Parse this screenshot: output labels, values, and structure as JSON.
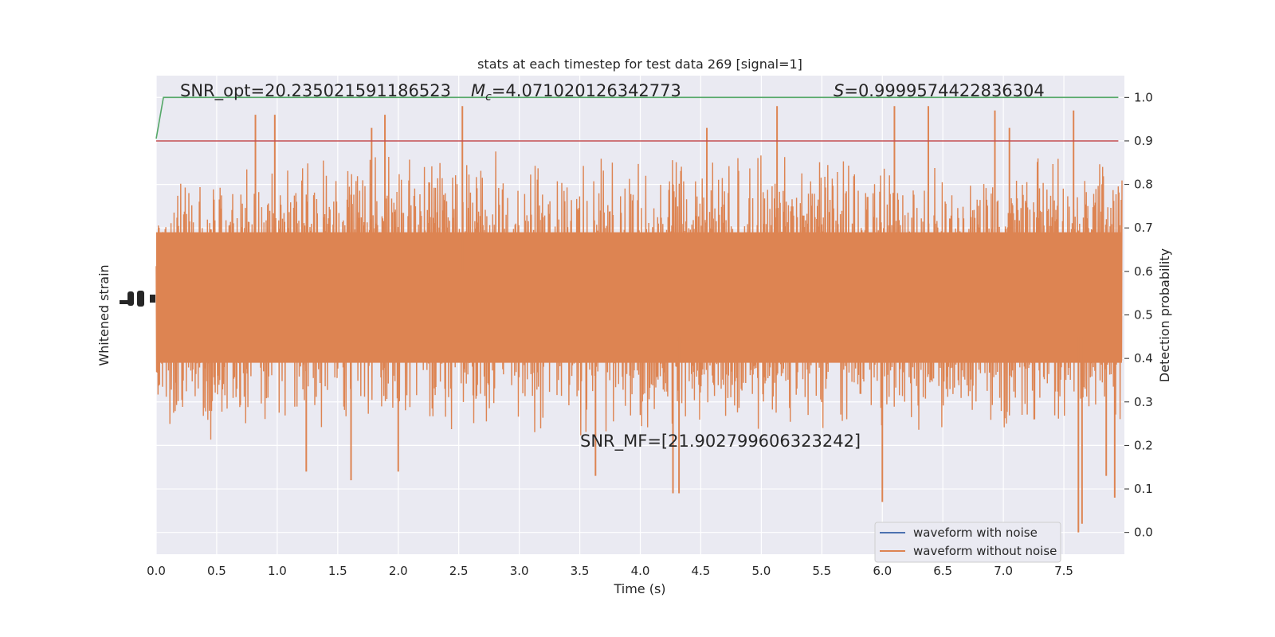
{
  "chart_data": {
    "type": "line",
    "title": "stats at each timestep for test data 269 [signal=1]",
    "xlabel": "Time (s)",
    "ylabel_left": "Whitened strain",
    "ylabel_right": "Detection probability",
    "xlim": [
      0.0,
      8.0
    ],
    "ylim_right": [
      -0.05,
      1.05
    ],
    "x_ticks": [
      "0.0",
      "0.5",
      "1.0",
      "1.5",
      "2.0",
      "2.5",
      "3.0",
      "3.5",
      "4.0",
      "4.5",
      "5.0",
      "5.5",
      "6.0",
      "6.5",
      "7.0",
      "7.5"
    ],
    "x_tick_values": [
      0.0,
      0.5,
      1.0,
      1.5,
      2.0,
      2.5,
      3.0,
      3.5,
      4.0,
      4.5,
      5.0,
      5.5,
      6.0,
      6.5,
      7.0,
      7.5
    ],
    "y_right_ticks": [
      "0.0",
      "0.1",
      "0.2",
      "0.3",
      "0.4",
      "0.5",
      "0.6",
      "0.7",
      "0.8",
      "0.9",
      "1.0"
    ],
    "y_right_tick_values": [
      0.0,
      0.1,
      0.2,
      0.3,
      0.4,
      0.5,
      0.6,
      0.7,
      0.8,
      0.9,
      1.0
    ],
    "grid": true,
    "background": "#eaeaf2",
    "series": [
      {
        "name": "waveform with noise",
        "color": "#4c72b0"
      },
      {
        "name": "waveform without noise",
        "color": "#dd8452",
        "envelope_upper": [
          0.75,
          0.78,
          0.8,
          0.82,
          0.8,
          0.81,
          0.8,
          0.8,
          0.79,
          0.8,
          0.82,
          0.81,
          0.8,
          0.79,
          0.8,
          0.81,
          0.82
        ],
        "envelope_lower": [
          0.3,
          0.28,
          0.3,
          0.29,
          0.3,
          0.3,
          0.28,
          0.29,
          0.28,
          0.3,
          0.29,
          0.3,
          0.28,
          0.3,
          0.29,
          0.28,
          0.3
        ],
        "peaks": [
          {
            "x": 0.82,
            "y": 0.96
          },
          {
            "x": 0.98,
            "y": 0.96
          },
          {
            "x": 1.89,
            "y": 0.96
          },
          {
            "x": 2.53,
            "y": 0.98
          },
          {
            "x": 5.13,
            "y": 0.98
          },
          {
            "x": 6.1,
            "y": 0.98
          },
          {
            "x": 6.38,
            "y": 0.98
          },
          {
            "x": 6.93,
            "y": 0.97
          },
          {
            "x": 7.58,
            "y": 0.97
          },
          {
            "x": 7.05,
            "y": 0.93
          },
          {
            "x": 4.55,
            "y": 0.93
          },
          {
            "x": 1.78,
            "y": 0.93
          }
        ],
        "troughs": [
          {
            "x": 6.0,
            "y": 0.07
          },
          {
            "x": 7.65,
            "y": 0.02
          },
          {
            "x": 7.62,
            "y": 0.0
          },
          {
            "x": 4.27,
            "y": 0.09
          },
          {
            "x": 4.32,
            "y": 0.09
          },
          {
            "x": 1.61,
            "y": 0.12
          },
          {
            "x": 3.63,
            "y": 0.13
          },
          {
            "x": 7.92,
            "y": 0.08
          },
          {
            "x": 7.85,
            "y": 0.13
          },
          {
            "x": 2.0,
            "y": 0.14
          },
          {
            "x": 1.24,
            "y": 0.14
          }
        ]
      },
      {
        "name": "",
        "color": "#55a868",
        "x": [
          0.0,
          0.06,
          7.95
        ],
        "y": [
          0.905,
          1.0,
          1.0
        ]
      },
      {
        "name": "",
        "color": "#c44e52",
        "x": [
          0.0,
          7.95
        ],
        "y": [
          0.9,
          0.9
        ]
      }
    ],
    "annotations": [
      {
        "text": "SNR_opt=20.235021591186523",
        "x": 0.2,
        "y": 1.0
      },
      {
        "text_prefix": "M",
        "text_sub": "c",
        "text_rest": "=4.071020126342773",
        "x": 2.6,
        "y": 1.0
      },
      {
        "text_prefix": "S",
        "text_rest": "=0.9999574422836304",
        "x": 5.6,
        "y": 1.0
      },
      {
        "text": "SNR_MF=[21.902799606323242]",
        "x": 3.5,
        "y": 0.2
      }
    ]
  }
}
